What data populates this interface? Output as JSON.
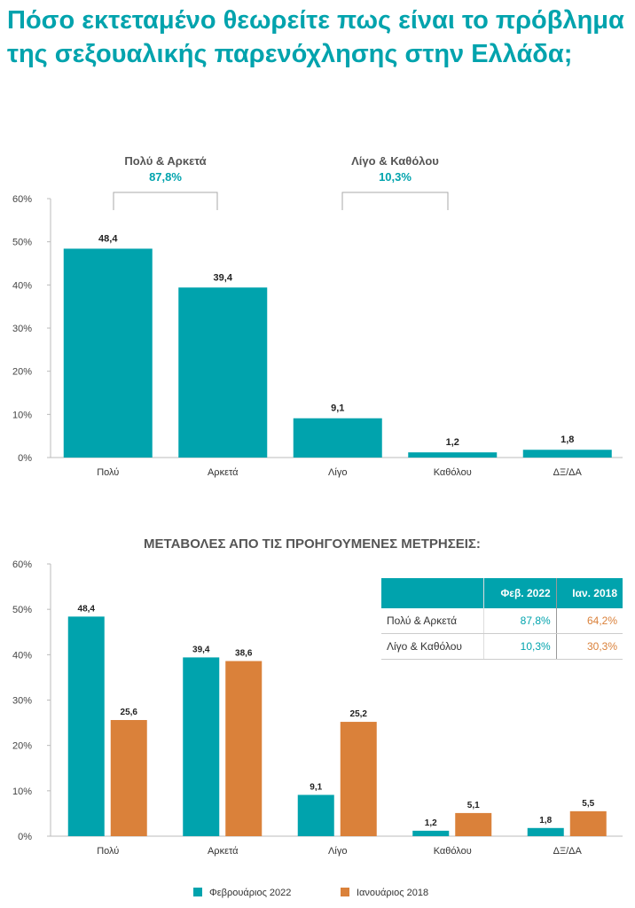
{
  "title": "Πόσο εκτεταμένο θεωρείτε πως είναι το πρόβλημα της σεξουαλικής παρενόχλησης στην Ελλάδα;",
  "colors": {
    "teal": "#00A3AD",
    "orange": "#DA813A"
  },
  "chart_data": [
    {
      "type": "bar",
      "categories": [
        "Πολύ",
        "Αρκετά",
        "Λίγο",
        "Καθόλου",
        "ΔΞ/ΔΑ"
      ],
      "values": [
        48.4,
        39.4,
        9.1,
        1.2,
        1.8
      ],
      "value_labels": [
        "48,4",
        "39,4",
        "9,1",
        "1,2",
        "1,8"
      ],
      "yticks": [
        "0%",
        "10%",
        "20%",
        "30%",
        "40%",
        "50%",
        "60%"
      ],
      "ylim": [
        0,
        60
      ],
      "groups": [
        {
          "label": "Πολύ & Αρκετά",
          "value": "87,8%"
        },
        {
          "label": "Λίγο & Καθόλου",
          "value": "10,3%"
        }
      ]
    },
    {
      "type": "bar",
      "title": "ΜΕΤΑΒΟΛΕΣ ΑΠΟ ΤΙΣ ΠΡΟΗΓΟΥΜΕΝΕΣ ΜΕΤΡΗΣΕΙΣ:",
      "categories": [
        "Πολύ",
        "Αρκετά",
        "Λίγο",
        "Καθόλου",
        "ΔΞ/ΔΑ"
      ],
      "series": [
        {
          "name": "Φεβρουάριος 2022",
          "values": [
            48.4,
            39.4,
            9.1,
            1.2,
            1.8
          ],
          "labels": [
            "48,4",
            "39,4",
            "9,1",
            "1,2",
            "1,8"
          ]
        },
        {
          "name": "Ιανουάριος 2018",
          "values": [
            25.6,
            38.6,
            25.2,
            5.1,
            5.5
          ],
          "labels": [
            "25,6",
            "38,6",
            "25,2",
            "5,1",
            "5,5"
          ]
        }
      ],
      "yticks": [
        "0%",
        "10%",
        "20%",
        "30%",
        "40%",
        "50%",
        "60%"
      ],
      "ylim": [
        0,
        60
      ],
      "legend": "bottom"
    }
  ],
  "table": {
    "headers": [
      "",
      "Φεβ. 2022",
      "Ιαν. 2018"
    ],
    "rows": [
      [
        "Πολύ & Αρκετά",
        "87,8%",
        "64,2%"
      ],
      [
        "Λίγο & Καθόλου",
        "10,3%",
        "30,3%"
      ]
    ]
  }
}
